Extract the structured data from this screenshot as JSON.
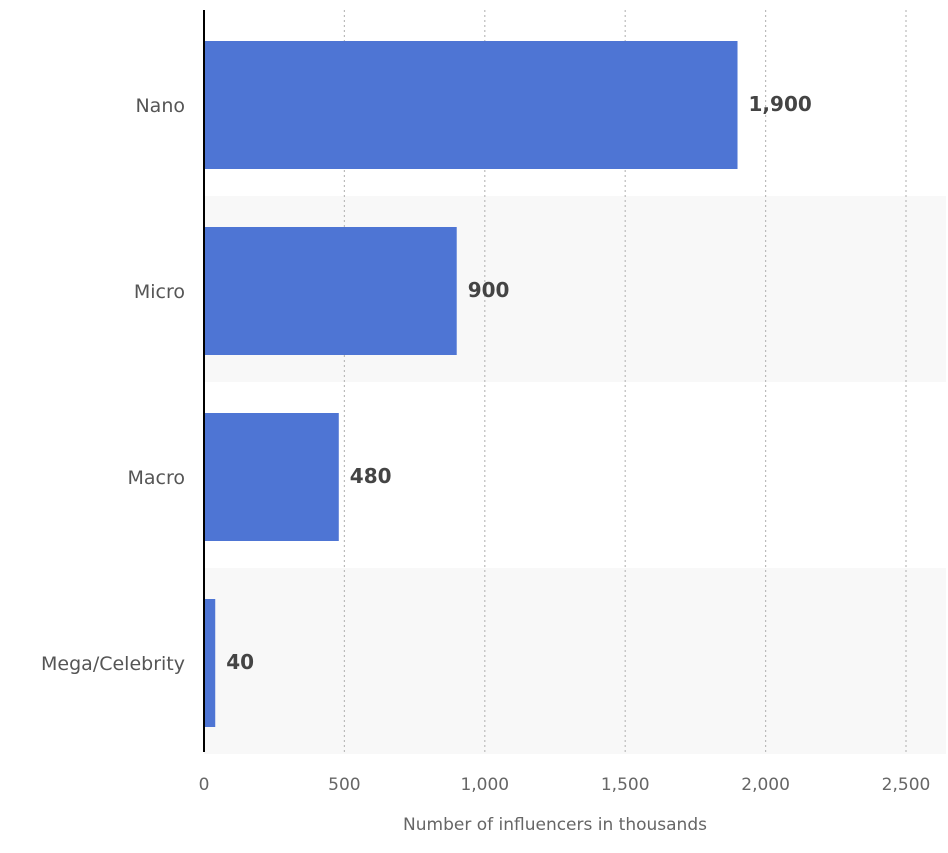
{
  "chart_data": {
    "type": "bar",
    "orientation": "horizontal",
    "categories": [
      "Nano",
      "Micro",
      "Macro",
      "Mega/Celebrity"
    ],
    "values": [
      1900,
      900,
      480,
      40
    ],
    "value_labels": [
      "1,900",
      "900",
      "480",
      "40"
    ],
    "xlabel": "Number of influencers in thousands",
    "ylabel": "",
    "xlim": [
      0,
      2500
    ],
    "xticks": [
      0,
      500,
      1000,
      1500,
      2000,
      2500
    ],
    "xtick_labels": [
      "0",
      "500",
      "1,000",
      "1,500",
      "2,000",
      "2,500"
    ],
    "grid": "vertical dotted",
    "bar_color": "#4e75d4",
    "band_color": "#f8f8f8"
  }
}
